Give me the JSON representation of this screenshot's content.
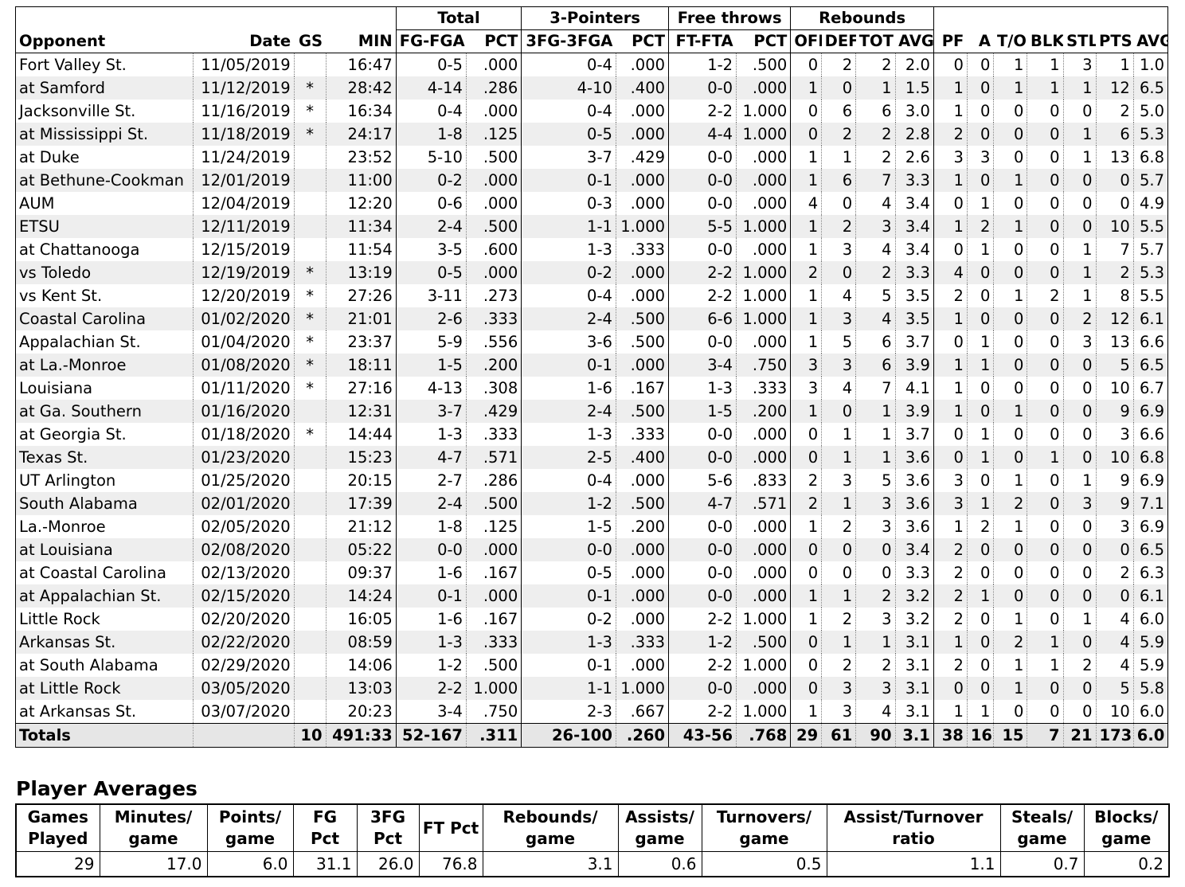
{
  "game_log": {
    "group_headers": {
      "total": "Total",
      "three_pointers": "3-Pointers",
      "free_throws": "Free throws",
      "rebounds": "Rebounds"
    },
    "columns": [
      "Opponent",
      "Date",
      "GS",
      "MIN",
      "FG-FGA",
      "PCT",
      "3FG-3FGA",
      "PCT",
      "FT-FTA",
      "PCT",
      "OFF",
      "DEF",
      "TOT",
      "AVG",
      "PF",
      "A",
      "T/O",
      "BLK",
      "STL",
      "PTS",
      "AVG"
    ],
    "rows": [
      [
        "Fort Valley St.",
        "11/05/2019",
        "",
        "16:47",
        "0-5",
        ".000",
        "0-4",
        ".000",
        "1-2",
        ".500",
        "0",
        "2",
        "2",
        "2.0",
        "0",
        "0",
        "1",
        "1",
        "3",
        "1",
        "1.0"
      ],
      [
        "at Samford",
        "11/12/2019",
        "*",
        "28:42",
        "4-14",
        ".286",
        "4-10",
        ".400",
        "0-0",
        ".000",
        "1",
        "0",
        "1",
        "1.5",
        "1",
        "0",
        "1",
        "1",
        "1",
        "12",
        "6.5"
      ],
      [
        "Jacksonville St.",
        "11/16/2019",
        "*",
        "16:34",
        "0-4",
        ".000",
        "0-4",
        ".000",
        "2-2",
        "1.000",
        "0",
        "6",
        "6",
        "3.0",
        "1",
        "0",
        "0",
        "0",
        "0",
        "2",
        "5.0"
      ],
      [
        "at Mississippi St.",
        "11/18/2019",
        "*",
        "24:17",
        "1-8",
        ".125",
        "0-5",
        ".000",
        "4-4",
        "1.000",
        "0",
        "2",
        "2",
        "2.8",
        "2",
        "0",
        "0",
        "0",
        "1",
        "6",
        "5.3"
      ],
      [
        "at Duke",
        "11/24/2019",
        "",
        "23:52",
        "5-10",
        ".500",
        "3-7",
        ".429",
        "0-0",
        ".000",
        "1",
        "1",
        "2",
        "2.6",
        "3",
        "3",
        "0",
        "0",
        "1",
        "13",
        "6.8"
      ],
      [
        "at Bethune-Cookman",
        "12/01/2019",
        "",
        "11:00",
        "0-2",
        ".000",
        "0-1",
        ".000",
        "0-0",
        ".000",
        "1",
        "6",
        "7",
        "3.3",
        "1",
        "0",
        "1",
        "0",
        "0",
        "0",
        "5.7"
      ],
      [
        "AUM",
        "12/04/2019",
        "",
        "12:20",
        "0-6",
        ".000",
        "0-3",
        ".000",
        "0-0",
        ".000",
        "4",
        "0",
        "4",
        "3.4",
        "0",
        "1",
        "0",
        "0",
        "0",
        "0",
        "4.9"
      ],
      [
        "ETSU",
        "12/11/2019",
        "",
        "11:34",
        "2-4",
        ".500",
        "1-1",
        "1.000",
        "5-5",
        "1.000",
        "1",
        "2",
        "3",
        "3.4",
        "1",
        "2",
        "1",
        "0",
        "0",
        "10",
        "5.5"
      ],
      [
        "at Chattanooga",
        "12/15/2019",
        "",
        "11:54",
        "3-5",
        ".600",
        "1-3",
        ".333",
        "0-0",
        ".000",
        "1",
        "3",
        "4",
        "3.4",
        "0",
        "1",
        "0",
        "0",
        "1",
        "7",
        "5.7"
      ],
      [
        "vs Toledo",
        "12/19/2019",
        "*",
        "13:19",
        "0-5",
        ".000",
        "0-2",
        ".000",
        "2-2",
        "1.000",
        "2",
        "0",
        "2",
        "3.3",
        "4",
        "0",
        "0",
        "0",
        "1",
        "2",
        "5.3"
      ],
      [
        "vs Kent St.",
        "12/20/2019",
        "*",
        "27:26",
        "3-11",
        ".273",
        "0-4",
        ".000",
        "2-2",
        "1.000",
        "1",
        "4",
        "5",
        "3.5",
        "2",
        "0",
        "1",
        "2",
        "1",
        "8",
        "5.5"
      ],
      [
        "Coastal Carolina",
        "01/02/2020",
        "*",
        "21:01",
        "2-6",
        ".333",
        "2-4",
        ".500",
        "6-6",
        "1.000",
        "1",
        "3",
        "4",
        "3.5",
        "1",
        "0",
        "0",
        "0",
        "2",
        "12",
        "6.1"
      ],
      [
        "Appalachian St.",
        "01/04/2020",
        "*",
        "23:37",
        "5-9",
        ".556",
        "3-6",
        ".500",
        "0-0",
        ".000",
        "1",
        "5",
        "6",
        "3.7",
        "0",
        "1",
        "0",
        "0",
        "3",
        "13",
        "6.6"
      ],
      [
        "at La.-Monroe",
        "01/08/2020",
        "*",
        "18:11",
        "1-5",
        ".200",
        "0-1",
        ".000",
        "3-4",
        ".750",
        "3",
        "3",
        "6",
        "3.9",
        "1",
        "1",
        "0",
        "0",
        "0",
        "5",
        "6.5"
      ],
      [
        "Louisiana",
        "01/11/2020",
        "*",
        "27:16",
        "4-13",
        ".308",
        "1-6",
        ".167",
        "1-3",
        ".333",
        "3",
        "4",
        "7",
        "4.1",
        "1",
        "0",
        "0",
        "0",
        "0",
        "10",
        "6.7"
      ],
      [
        "at Ga. Southern",
        "01/16/2020",
        "",
        "12:31",
        "3-7",
        ".429",
        "2-4",
        ".500",
        "1-5",
        ".200",
        "1",
        "0",
        "1",
        "3.9",
        "1",
        "0",
        "1",
        "0",
        "0",
        "9",
        "6.9"
      ],
      [
        "at Georgia St.",
        "01/18/2020",
        "*",
        "14:44",
        "1-3",
        ".333",
        "1-3",
        ".333",
        "0-0",
        ".000",
        "0",
        "1",
        "1",
        "3.7",
        "0",
        "1",
        "0",
        "0",
        "0",
        "3",
        "6.6"
      ],
      [
        "Texas St.",
        "01/23/2020",
        "",
        "15:23",
        "4-7",
        ".571",
        "2-5",
        ".400",
        "0-0",
        ".000",
        "0",
        "1",
        "1",
        "3.6",
        "0",
        "1",
        "0",
        "1",
        "0",
        "10",
        "6.8"
      ],
      [
        "UT Arlington",
        "01/25/2020",
        "",
        "20:15",
        "2-7",
        ".286",
        "0-4",
        ".000",
        "5-6",
        ".833",
        "2",
        "3",
        "5",
        "3.6",
        "3",
        "0",
        "1",
        "0",
        "1",
        "9",
        "6.9"
      ],
      [
        "South Alabama",
        "02/01/2020",
        "",
        "17:39",
        "2-4",
        ".500",
        "1-2",
        ".500",
        "4-7",
        ".571",
        "2",
        "1",
        "3",
        "3.6",
        "3",
        "1",
        "2",
        "0",
        "3",
        "9",
        "7.1"
      ],
      [
        "La.-Monroe",
        "02/05/2020",
        "",
        "21:12",
        "1-8",
        ".125",
        "1-5",
        ".200",
        "0-0",
        ".000",
        "1",
        "2",
        "3",
        "3.6",
        "1",
        "2",
        "1",
        "0",
        "0",
        "3",
        "6.9"
      ],
      [
        "at Louisiana",
        "02/08/2020",
        "",
        "05:22",
        "0-0",
        ".000",
        "0-0",
        ".000",
        "0-0",
        ".000",
        "0",
        "0",
        "0",
        "3.4",
        "2",
        "0",
        "0",
        "0",
        "0",
        "0",
        "6.5"
      ],
      [
        "at Coastal Carolina",
        "02/13/2020",
        "",
        "09:37",
        "1-6",
        ".167",
        "0-5",
        ".000",
        "0-0",
        ".000",
        "0",
        "0",
        "0",
        "3.3",
        "2",
        "0",
        "0",
        "0",
        "0",
        "2",
        "6.3"
      ],
      [
        "at Appalachian St.",
        "02/15/2020",
        "",
        "14:24",
        "0-1",
        ".000",
        "0-1",
        ".000",
        "0-0",
        ".000",
        "1",
        "1",
        "2",
        "3.2",
        "2",
        "1",
        "0",
        "0",
        "0",
        "0",
        "6.1"
      ],
      [
        "Little Rock",
        "02/20/2020",
        "",
        "16:05",
        "1-6",
        ".167",
        "0-2",
        ".000",
        "2-2",
        "1.000",
        "1",
        "2",
        "3",
        "3.2",
        "2",
        "0",
        "1",
        "0",
        "1",
        "4",
        "6.0"
      ],
      [
        "Arkansas St.",
        "02/22/2020",
        "",
        "08:59",
        "1-3",
        ".333",
        "1-3",
        ".333",
        "1-2",
        ".500",
        "0",
        "1",
        "1",
        "3.1",
        "1",
        "0",
        "2",
        "1",
        "0",
        "4",
        "5.9"
      ],
      [
        "at South Alabama",
        "02/29/2020",
        "",
        "14:06",
        "1-2",
        ".500",
        "0-1",
        ".000",
        "2-2",
        "1.000",
        "0",
        "2",
        "2",
        "3.1",
        "2",
        "0",
        "1",
        "1",
        "2",
        "4",
        "5.9"
      ],
      [
        "at Little Rock",
        "03/05/2020",
        "",
        "13:03",
        "2-2",
        "1.000",
        "1-1",
        "1.000",
        "0-0",
        ".000",
        "0",
        "3",
        "3",
        "3.1",
        "0",
        "0",
        "1",
        "0",
        "0",
        "5",
        "5.8"
      ],
      [
        "at Arkansas St.",
        "03/07/2020",
        "",
        "20:23",
        "3-4",
        ".750",
        "2-3",
        ".667",
        "2-2",
        "1.000",
        "1",
        "3",
        "4",
        "3.1",
        "1",
        "1",
        "0",
        "0",
        "0",
        "10",
        "6.0"
      ]
    ],
    "totals": [
      "Totals",
      "",
      "10",
      "491:33",
      "52-167",
      ".311",
      "26-100",
      ".260",
      "43-56",
      ".768",
      "29",
      "61",
      "90",
      "3.1",
      "38",
      "16",
      "15",
      "7",
      "21",
      "173",
      "6.0"
    ]
  },
  "player_averages": {
    "title": "Player Averages",
    "headers": [
      "Games Played",
      "Minutes/ game",
      "Points/ game",
      "FG Pct",
      "3FG Pct",
      "FT Pct",
      "Rebounds/ game",
      "Assists/ game",
      "Turnovers/ game",
      "Assist/Turnover ratio",
      "Steals/ game",
      "Blocks/ game"
    ],
    "values": [
      "29",
      "17.0",
      "6.0",
      "31.1",
      "26.0",
      "76.8",
      "3.1",
      "0.6",
      "0.5",
      "1.1",
      "0.7",
      "0.2"
    ]
  }
}
